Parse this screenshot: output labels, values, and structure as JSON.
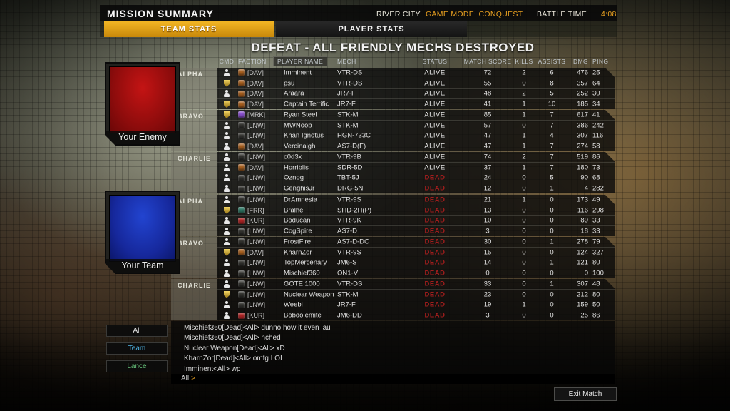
{
  "header": {
    "title": "MISSION SUMMARY",
    "map": "RIVER CITY",
    "game_mode": "GAME MODE: CONQUEST",
    "battle_time_label": "BATTLE TIME",
    "battle_time": "4:08"
  },
  "tabs": [
    {
      "label": "TEAM STATS",
      "active": true
    },
    {
      "label": "PLAYER STATS",
      "active": false
    }
  ],
  "result_title": "DEFEAT - ALL FRIENDLY MECHS DESTROYED",
  "scoreboard": {
    "columns": [
      "CMD",
      "FACTION",
      "PLAYER NAME",
      "MECH",
      "STATUS",
      "MATCH SCORE",
      "KILLS",
      "ASSISTS",
      "DMG",
      "PING"
    ],
    "faction_colors": {
      "DAV": "#a85f1e",
      "MRK": "#8a4fd0",
      "LNW": "#32322e",
      "FRR": "#2f7a66",
      "KUR": "#b02424"
    },
    "status_colors": {
      "alive": "#e4e4e4",
      "dead": "#a01d1d"
    },
    "teams": [
      {
        "name": "Your Enemy",
        "flag_color": "#b01010",
        "lances": [
          {
            "name": "ALPHA",
            "rows": [
              {
                "cmd": "person",
                "faction": "DAV",
                "name": "Imminent",
                "mech": "VTR-DS",
                "status": "ALIVE",
                "score": "72",
                "kills": "2",
                "assists": "6",
                "dmg": "476",
                "ping": "25"
              },
              {
                "cmd": "badge",
                "faction": "DAV",
                "name": "psu",
                "mech": "VTR-DS",
                "status": "ALIVE",
                "score": "55",
                "kills": "0",
                "assists": "8",
                "dmg": "357",
                "ping": "64"
              },
              {
                "cmd": "person",
                "faction": "DAV",
                "name": "Araara",
                "mech": "JR7-F",
                "status": "ALIVE",
                "score": "48",
                "kills": "2",
                "assists": "5",
                "dmg": "252",
                "ping": "30"
              },
              {
                "cmd": "badge",
                "faction": "DAV",
                "name": "Captain Terrific",
                "mech": "JR7-F",
                "status": "ALIVE",
                "score": "41",
                "kills": "1",
                "assists": "10",
                "dmg": "185",
                "ping": "34"
              }
            ]
          },
          {
            "name": "BRAVO",
            "rows": [
              {
                "cmd": "badge",
                "faction": "MRK",
                "name": "Ryan Steel",
                "mech": "STK-M",
                "status": "ALIVE",
                "score": "85",
                "kills": "1",
                "assists": "7",
                "dmg": "617",
                "ping": "41"
              },
              {
                "cmd": "person",
                "faction": "LNW",
                "name": "MWNoob",
                "mech": "STK-M",
                "status": "ALIVE",
                "score": "57",
                "kills": "0",
                "assists": "7",
                "dmg": "386",
                "ping": "242"
              },
              {
                "cmd": "person",
                "faction": "LNW",
                "name": "Khan Ignotus",
                "mech": "HGN-733C",
                "status": "ALIVE",
                "score": "47",
                "kills": "1",
                "assists": "4",
                "dmg": "307",
                "ping": "116"
              },
              {
                "cmd": "person",
                "faction": "DAV",
                "name": "Vercinaigh",
                "mech": "AS7-D(F)",
                "status": "ALIVE",
                "score": "47",
                "kills": "1",
                "assists": "7",
                "dmg": "274",
                "ping": "58"
              }
            ]
          },
          {
            "name": "CHARLIE",
            "rows": [
              {
                "cmd": "person",
                "faction": "LNW",
                "name": "c0d3x",
                "mech": "VTR-9B",
                "status": "ALIVE",
                "score": "74",
                "kills": "2",
                "assists": "7",
                "dmg": "519",
                "ping": "86"
              },
              {
                "cmd": "person",
                "faction": "DAV",
                "name": "Horriblis",
                "mech": "SDR-5D",
                "status": "ALIVE",
                "score": "37",
                "kills": "1",
                "assists": "7",
                "dmg": "180",
                "ping": "73"
              },
              {
                "cmd": "person",
                "faction": "LNW",
                "name": "Oznog",
                "mech": "TBT-5J",
                "status": "DEAD",
                "score": "24",
                "kills": "0",
                "assists": "5",
                "dmg": "90",
                "ping": "68"
              },
              {
                "cmd": "person",
                "faction": "LNW",
                "name": "GenghisJr",
                "mech": "DRG-5N",
                "status": "DEAD",
                "score": "12",
                "kills": "0",
                "assists": "1",
                "dmg": "4",
                "ping": "282"
              }
            ]
          }
        ]
      },
      {
        "name": "Your Team",
        "flag_color": "#1535b5",
        "lances": [
          {
            "name": "ALPHA",
            "rows": [
              {
                "cmd": "person",
                "faction": "LNW",
                "name": "DrAmnesia",
                "mech": "VTR-9S",
                "status": "DEAD",
                "score": "21",
                "kills": "1",
                "assists": "0",
                "dmg": "173",
                "ping": "49"
              },
              {
                "cmd": "badge",
                "faction": "FRR",
                "name": "Bralhe",
                "mech": "SHD-2H(P)",
                "status": "DEAD",
                "score": "13",
                "kills": "0",
                "assists": "0",
                "dmg": "116",
                "ping": "298"
              },
              {
                "cmd": "person",
                "faction": "KUR",
                "name": "Boducan",
                "mech": "VTR-9K",
                "status": "DEAD",
                "score": "10",
                "kills": "0",
                "assists": "0",
                "dmg": "89",
                "ping": "33"
              },
              {
                "cmd": "person",
                "faction": "LNW",
                "name": "CogSpire",
                "mech": "AS7-D",
                "status": "DEAD",
                "score": "3",
                "kills": "0",
                "assists": "0",
                "dmg": "18",
                "ping": "33"
              }
            ]
          },
          {
            "name": "BRAVO",
            "rows": [
              {
                "cmd": "person",
                "faction": "LNW",
                "name": "FrostFire",
                "mech": "AS7-D-DC",
                "status": "DEAD",
                "score": "30",
                "kills": "0",
                "assists": "1",
                "dmg": "278",
                "ping": "79"
              },
              {
                "cmd": "badge",
                "faction": "DAV",
                "name": "KharnZor",
                "mech": "VTR-9S",
                "status": "DEAD",
                "score": "15",
                "kills": "0",
                "assists": "0",
                "dmg": "124",
                "ping": "327"
              },
              {
                "cmd": "person",
                "faction": "LNW",
                "name": "TopMercenary",
                "mech": "JM6-S",
                "status": "DEAD",
                "score": "14",
                "kills": "0",
                "assists": "1",
                "dmg": "121",
                "ping": "80"
              },
              {
                "cmd": "person",
                "faction": "LNW",
                "name": "Mischief360",
                "mech": "ON1-V",
                "status": "DEAD",
                "score": "0",
                "kills": "0",
                "assists": "0",
                "dmg": "0",
                "ping": "100"
              }
            ]
          },
          {
            "name": "CHARLIE",
            "rows": [
              {
                "cmd": "person",
                "faction": "LNW",
                "name": "GOTE 1000",
                "mech": "VTR-DS",
                "status": "DEAD",
                "score": "33",
                "kills": "0",
                "assists": "1",
                "dmg": "307",
                "ping": "48"
              },
              {
                "cmd": "badge",
                "faction": "LNW",
                "name": "Nuclear Weapon",
                "mech": "STK-M",
                "status": "DEAD",
                "score": "23",
                "kills": "0",
                "assists": "0",
                "dmg": "212",
                "ping": "80"
              },
              {
                "cmd": "person",
                "faction": "LNW",
                "name": "Weebi",
                "mech": "JR7-F",
                "status": "DEAD",
                "score": "19",
                "kills": "1",
                "assists": "0",
                "dmg": "159",
                "ping": "50"
              },
              {
                "cmd": "person",
                "faction": "KUR",
                "name": "Bobdolemite",
                "mech": "JM6-DD",
                "status": "DEAD",
                "score": "3",
                "kills": "0",
                "assists": "0",
                "dmg": "25",
                "ping": "86"
              }
            ]
          }
        ]
      }
    ]
  },
  "chat": {
    "filters": [
      {
        "label": "All",
        "color": "#e8e8e8"
      },
      {
        "label": "Team",
        "color": "#4fb7e8"
      },
      {
        "label": "Lance",
        "color": "#66c07a"
      }
    ],
    "messages": [
      "Mischief360[Dead]<All> dunno how it even lau",
      "Mischief360[Dead]<All> nched",
      "Nuclear Weapon[Dead]<All> xD",
      "KharnZor[Dead]<All> omfg LOL",
      "Imminent<All> wp"
    ],
    "input_channel": "All",
    "input_caret": ">"
  },
  "exit_button_label": "Exit Match"
}
